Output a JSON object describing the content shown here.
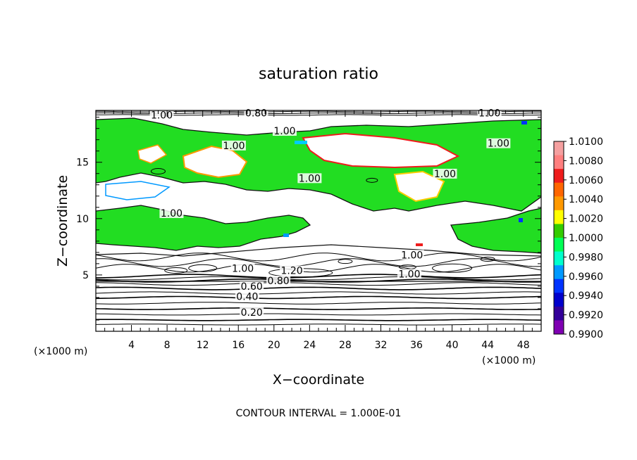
{
  "chart_data": {
    "type": "heatmap",
    "title": "saturation ratio",
    "xlabel": "X−coordinate",
    "ylabel": "Z−coordinate",
    "x_unit": "(×1000 m)",
    "y_unit": "(×1000 m)",
    "footer": "CONTOUR INTERVAL = 1.000E-01",
    "xlim": [
      0,
      50
    ],
    "ylim": [
      0,
      19.6
    ],
    "x_ticks": [
      4,
      8,
      12,
      16,
      20,
      24,
      28,
      32,
      36,
      40,
      44,
      48
    ],
    "y_ticks": [
      5,
      10,
      15
    ],
    "colorbar": {
      "levels": [
        "1.0100",
        "1.0080",
        "1.0060",
        "1.0040",
        "1.0020",
        "1.0000",
        "0.9980",
        "0.9960",
        "0.9940",
        "0.9920",
        "0.9900"
      ],
      "colors": [
        "#f5a0a0",
        "#ff7f7f",
        "#ee1c1c",
        "#ff6600",
        "#ff9900",
        "#ffff00",
        "#33cc00",
        "#00ff55",
        "#00ffcc",
        "#0099ff",
        "#0033ff",
        "#0000cc",
        "#330099",
        "#7f00b2"
      ]
    },
    "contour_labels": [
      {
        "text": "1.00",
        "x": 7.4,
        "z": 19.0
      },
      {
        "text": "0.80",
        "x": 18.0,
        "z": 19.2
      },
      {
        "text": "1.00",
        "x": 44.2,
        "z": 19.2
      },
      {
        "text": "1.00",
        "x": 21.2,
        "z": 17.6
      },
      {
        "text": "1.00",
        "x": 15.5,
        "z": 16.3
      },
      {
        "text": "1.00",
        "x": 45.2,
        "z": 16.5
      },
      {
        "text": "1.00",
        "x": 24.0,
        "z": 13.4
      },
      {
        "text": "1.00",
        "x": 39.2,
        "z": 13.8
      },
      {
        "text": "1.00",
        "x": 8.5,
        "z": 10.3
      },
      {
        "text": "1.00",
        "x": 35.5,
        "z": 6.6
      },
      {
        "text": "1.00",
        "x": 16.5,
        "z": 5.4
      },
      {
        "text": "1.20",
        "x": 22.0,
        "z": 5.2
      },
      {
        "text": "1.00",
        "x": 35.2,
        "z": 4.9
      },
      {
        "text": "0.80",
        "x": 20.5,
        "z": 4.3
      },
      {
        "text": "0.60",
        "x": 17.5,
        "z": 3.8
      },
      {
        "text": "0.40",
        "x": 17.0,
        "z": 2.9
      },
      {
        "text": "0.20",
        "x": 17.5,
        "z": 1.5
      }
    ]
  }
}
